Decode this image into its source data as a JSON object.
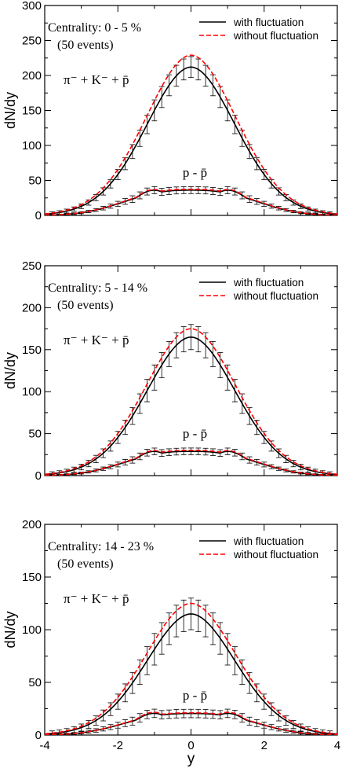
{
  "figure": {
    "xlabel": "y",
    "ylabel": "dN/dy",
    "legend_with": "with fluctuation",
    "legend_without": "without fluctuation",
    "label_pi": "π⁻ + K⁻ + p̄",
    "label_p": "p - p̄",
    "colors": {
      "with": "#000000",
      "without": "#ff0000",
      "axis": "#000000",
      "errorbar": "#000000"
    }
  },
  "chart_data": [
    {
      "type": "line",
      "panel": 1,
      "centrality": "Centrality: 0 - 5 %",
      "events": "(50 events)",
      "ylim": [
        0,
        300
      ],
      "yticks": [
        0,
        50,
        100,
        150,
        200,
        250,
        300
      ],
      "xlim": [
        -4,
        4
      ],
      "xticks": [
        -4,
        -2,
        0,
        2,
        4
      ],
      "series": [
        {
          "name": "with fluctuation",
          "species": "π⁻ + K⁻ + p̄",
          "style": "solid",
          "amp": 212,
          "width": 1.75,
          "power": 1.9,
          "error": 15
        },
        {
          "name": "without fluctuation",
          "species": "π⁻ + K⁻ + p̄",
          "style": "dashed",
          "amp": 229,
          "width": 1.78,
          "power": 1.9
        },
        {
          "name": "with fluctuation",
          "species": "p - p̄",
          "style": "solid",
          "base": 33,
          "bump": 35,
          "bump_center": 1.15,
          "dip": 30,
          "width": 2.2,
          "power": 2.6,
          "error": 5
        },
        {
          "name": "without fluctuation",
          "species": "p - p̄",
          "style": "dashed",
          "base": 34,
          "bump": 36,
          "bump_center": 1.15,
          "dip": 31,
          "width": 2.2,
          "power": 2.6
        }
      ]
    },
    {
      "type": "line",
      "panel": 2,
      "centrality": "Centrality: 5 - 14 %",
      "events": "(50 events)",
      "ylim": [
        0,
        250
      ],
      "yticks": [
        0,
        50,
        100,
        150,
        200,
        250
      ],
      "xlim": [
        -4,
        4
      ],
      "xticks": [
        -4,
        -2,
        0,
        2,
        4
      ],
      "series": [
        {
          "name": "with fluctuation",
          "species": "π⁻ + K⁻ + p̄",
          "style": "solid",
          "amp": 165,
          "width": 1.75,
          "power": 1.9,
          "error": 15
        },
        {
          "name": "without fluctuation",
          "species": "π⁻ + K⁻ + p̄",
          "style": "dashed",
          "amp": 175,
          "width": 1.78,
          "power": 1.9
        },
        {
          "name": "with fluctuation",
          "species": "p - p̄",
          "style": "solid",
          "base": 24,
          "bump": 28,
          "bump_center": 1.15,
          "dip": 24,
          "width": 2.2,
          "power": 2.6,
          "error": 4
        },
        {
          "name": "without fluctuation",
          "species": "p - p̄",
          "style": "dashed",
          "base": 25,
          "bump": 29,
          "bump_center": 1.15,
          "dip": 25,
          "width": 2.2,
          "power": 2.6
        }
      ]
    },
    {
      "type": "line",
      "panel": 3,
      "centrality": "Centrality: 14 - 23 %",
      "events": "(50 events)",
      "ylim": [
        0,
        200
      ],
      "yticks": [
        0,
        50,
        100,
        150,
        200
      ],
      "xlim": [
        -4,
        4
      ],
      "xticks": [
        -4,
        -2,
        0,
        2,
        4
      ],
      "series": [
        {
          "name": "with fluctuation",
          "species": "π⁻ + K⁻ + p̄",
          "style": "solid",
          "amp": 115,
          "width": 1.75,
          "power": 1.9,
          "error": 15
        },
        {
          "name": "without fluctuation",
          "species": "π⁻ + K⁻ + p̄",
          "style": "dashed",
          "amp": 125,
          "width": 1.78,
          "power": 1.9
        },
        {
          "name": "with fluctuation",
          "species": "p - p̄",
          "style": "solid",
          "base": 17,
          "bump": 20,
          "bump_center": 1.15,
          "dip": 17,
          "width": 2.2,
          "power": 2.6,
          "error": 4
        },
        {
          "name": "without fluctuation",
          "species": "p - p̄",
          "style": "dashed",
          "base": 17.5,
          "bump": 21,
          "bump_center": 1.15,
          "dip": 17.5,
          "width": 2.2,
          "power": 2.6
        }
      ]
    }
  ]
}
